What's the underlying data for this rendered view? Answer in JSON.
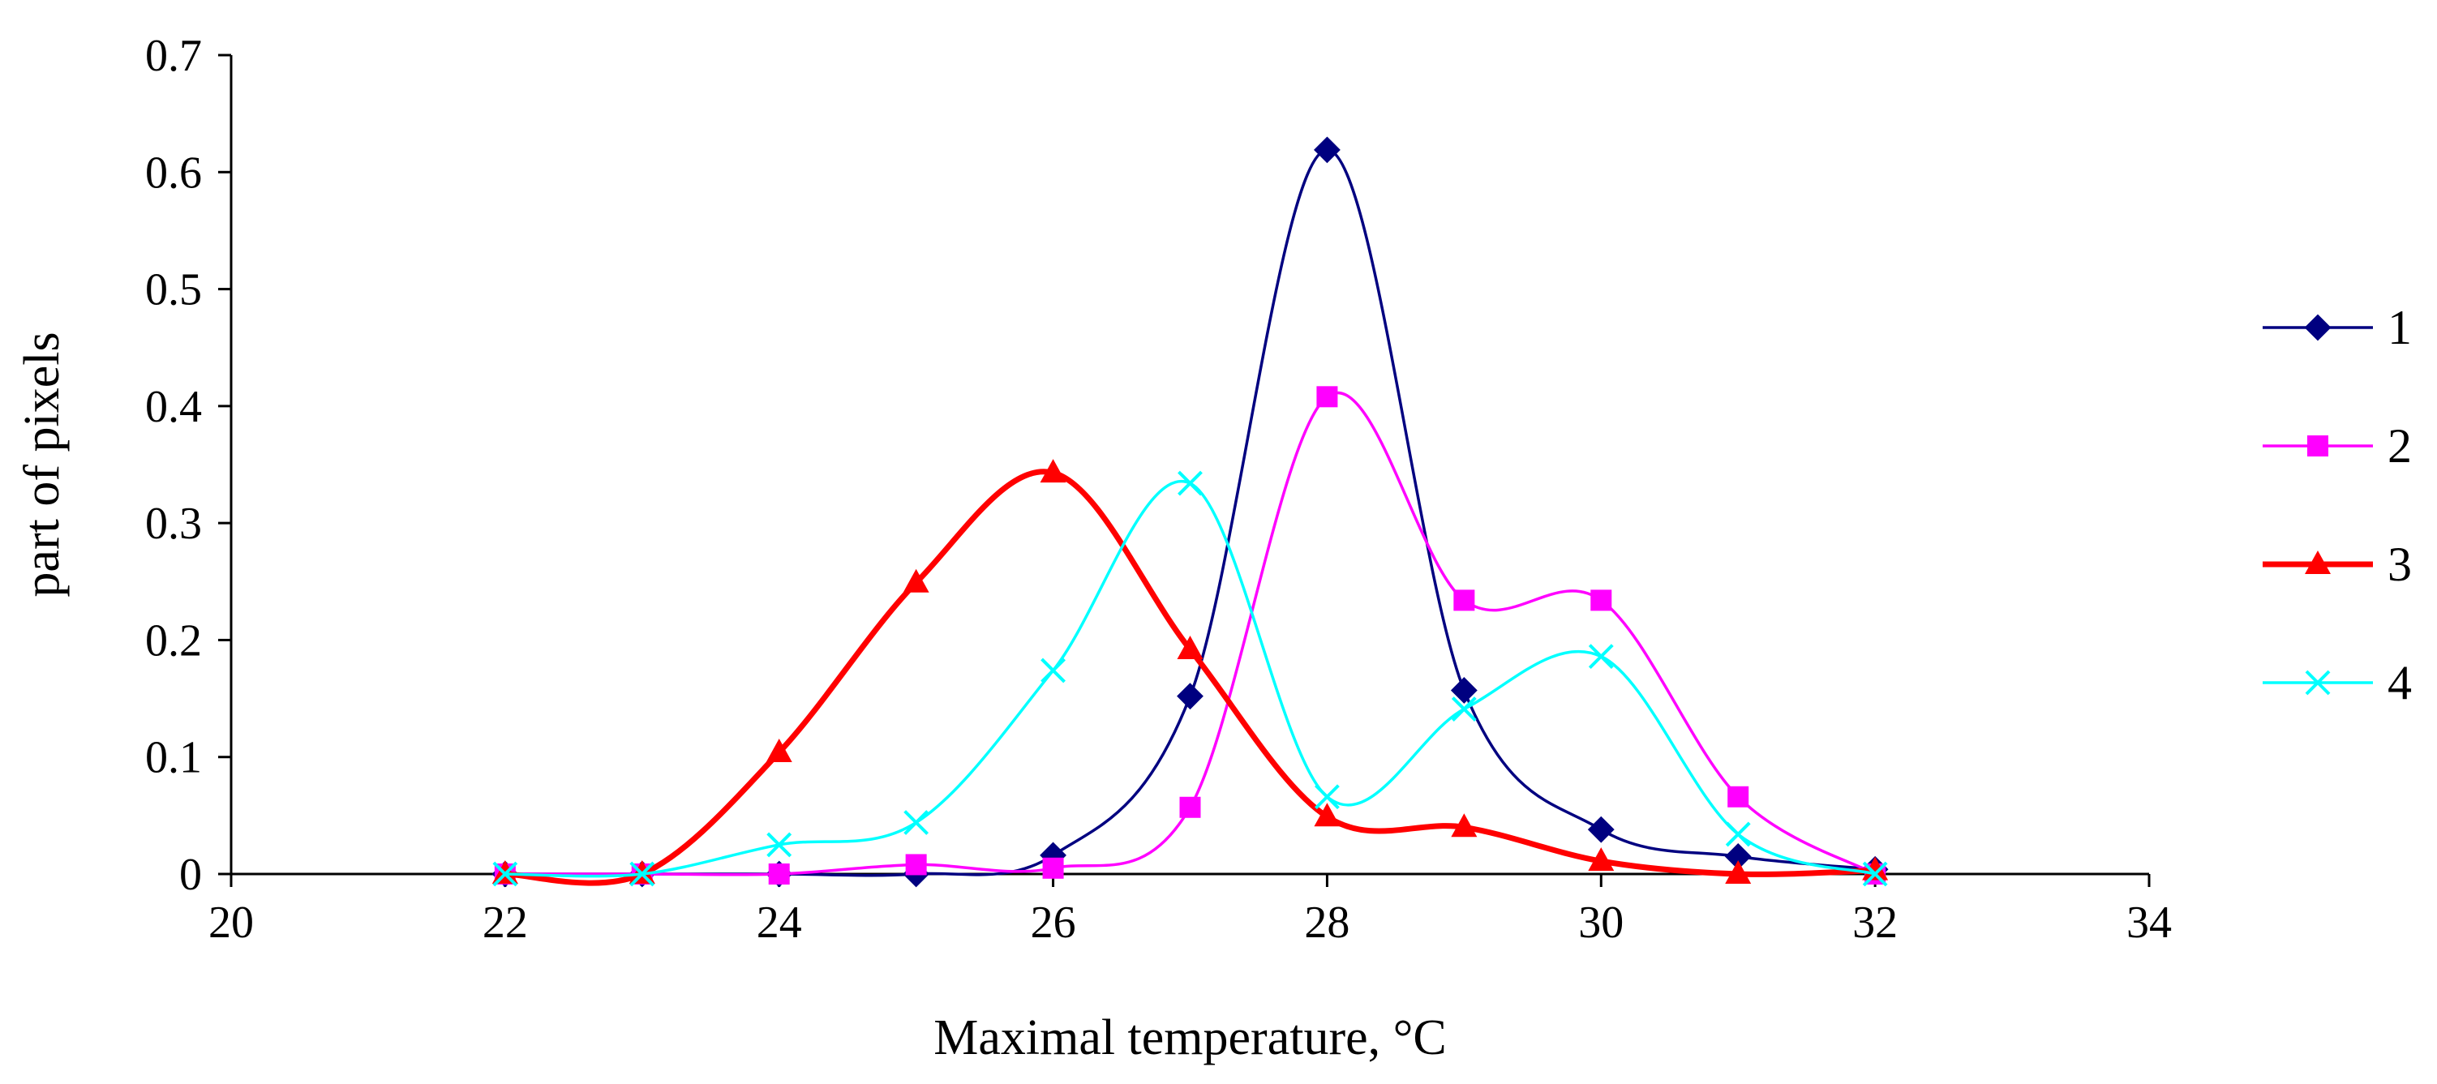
{
  "chart_data": {
    "type": "line",
    "smooth": true,
    "title": "",
    "xlabel": "Maximal temperature, °C",
    "ylabel": "part of pixels",
    "xlim": [
      20,
      34
    ],
    "ylim": [
      0,
      0.7
    ],
    "x_ticks": [
      20,
      22,
      24,
      26,
      28,
      30,
      32,
      34
    ],
    "x_tick_labels": [
      "20",
      "22",
      "24",
      "26",
      "28",
      "30",
      "32",
      "34"
    ],
    "y_ticks": [
      0,
      0.1,
      0.2,
      0.3,
      0.4,
      0.5,
      0.6,
      0.7
    ],
    "y_tick_labels": [
      "0",
      "0.1",
      "0.2",
      "0.3",
      "0.4",
      "0.5",
      "0.6",
      "0.7"
    ],
    "grid": false,
    "legend_position": "right",
    "x": [
      22,
      23,
      24,
      25,
      26,
      27,
      28,
      29,
      30,
      31,
      32
    ],
    "series": [
      {
        "name": "1",
        "color": "#000080",
        "marker": "diamond",
        "values": [
          0,
          0,
          0,
          0,
          0.016,
          0.152,
          0.619,
          0.157,
          0.038,
          0.015,
          0.004
        ]
      },
      {
        "name": "2",
        "color": "#ff00ff",
        "marker": "square",
        "values": [
          0,
          0,
          0,
          0.008,
          0.005,
          0.057,
          0.408,
          0.234,
          0.234,
          0.066,
          0
        ]
      },
      {
        "name": "3",
        "color": "#ff0000",
        "marker": "triangle",
        "values": [
          0,
          0,
          0.104,
          0.249,
          0.343,
          0.192,
          0.049,
          0.04,
          0.011,
          0,
          0.003
        ]
      },
      {
        "name": "4",
        "color": "#00ffff",
        "marker": "x",
        "values": [
          0,
          0,
          0.025,
          0.044,
          0.174,
          0.334,
          0.066,
          0.141,
          0.186,
          0.034,
          0
        ]
      }
    ]
  }
}
